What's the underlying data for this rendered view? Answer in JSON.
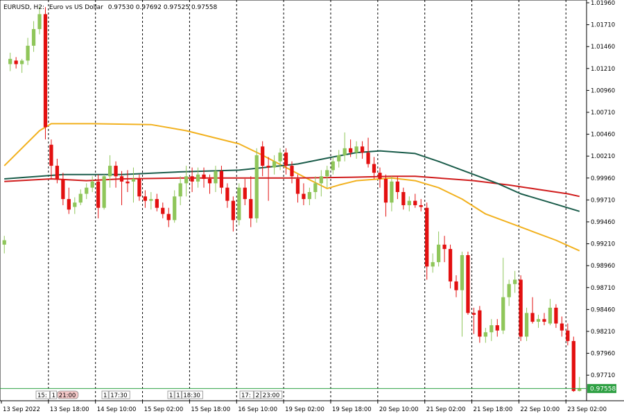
{
  "header": {
    "symbol": "EURUSD, H2:",
    "description": "Euro vs US Dollar",
    "ohlc": "0.97530 0.97692 0.97525 0.97558"
  },
  "current_price_label": "0.97558",
  "colors": {
    "background": "#ffffff",
    "bull": "#8fc65a",
    "bear": "#e31010",
    "ma_fast": "#f2b11e",
    "ma_mid": "#d01c1c",
    "ma_slow": "#1a5c4a",
    "current_price": "#2ea043"
  },
  "chart_data": {
    "type": "candlestick",
    "y_axis": {
      "ticks": [
        "1.01960",
        "1.01710",
        "1.01460",
        "1.01210",
        "1.00960",
        "1.00710",
        "1.00460",
        "1.00210",
        "0.99960",
        "0.99710",
        "0.99460",
        "0.99210",
        "0.98960",
        "0.98710",
        "0.98460",
        "0.98210",
        "0.97960",
        "0.97710"
      ],
      "ylim": [
        0.9745,
        1.0196
      ]
    },
    "x_axis": {
      "ticks": [
        "13 Sep 2022",
        "13 Sep 18:00",
        "14 Sep 10:00",
        "15 Sep 02:00",
        "15 Sep 18:00",
        "16 Sep 10:00",
        "19 Sep 02:00",
        "19 Sep 18:00",
        "20 Sep 10:00",
        "21 Sep 02:00",
        "21 Sep 18:00",
        "22 Sep 10:00",
        "23 Sep 02:00"
      ]
    },
    "period_separators": true,
    "event_markers": [
      {
        "labels": [
          "15:",
          "1",
          "21:00"
        ],
        "highlight_last": true
      },
      {
        "labels": [
          "1",
          "17:30"
        ],
        "highlight_last": false
      },
      {
        "labels": [
          "1",
          "1",
          "18:30"
        ],
        "highlight_last": false
      },
      {
        "labels": [
          "17:",
          "2",
          "23:00"
        ],
        "highlight_last": false
      }
    ],
    "candles": [
      {
        "o": 0.992,
        "h": 0.993,
        "l": 0.991,
        "c": 0.9925
      },
      {
        "o": 1.0126,
        "h": 1.0139,
        "l": 1.0118,
        "c": 1.0132
      },
      {
        "o": 1.013,
        "h": 1.0134,
        "l": 1.0121,
        "c": 1.0126
      },
      {
        "o": 1.0126,
        "h": 1.0132,
        "l": 1.0116,
        "c": 1.013
      },
      {
        "o": 1.013,
        "h": 1.0156,
        "l": 1.0125,
        "c": 1.0147
      },
      {
        "o": 1.0147,
        "h": 1.0175,
        "l": 1.014,
        "c": 1.0166
      },
      {
        "o": 1.0166,
        "h": 1.0192,
        "l": 1.016,
        "c": 1.0183
      },
      {
        "o": 1.0183,
        "h": 1.0191,
        "l": 1.004,
        "c": 1.0054
      },
      {
        "o": 1.0034,
        "h": 1.004,
        "l": 0.9995,
        "c": 1.001
      },
      {
        "o": 1.001,
        "h": 1.0018,
        "l": 0.999,
        "c": 0.9995
      },
      {
        "o": 0.9995,
        "h": 1.0002,
        "l": 0.9965,
        "c": 0.9972
      },
      {
        "o": 0.9972,
        "h": 0.9985,
        "l": 0.9955,
        "c": 0.996
      },
      {
        "o": 0.9963,
        "h": 0.9974,
        "l": 0.9955,
        "c": 0.9968
      },
      {
        "o": 0.9968,
        "h": 0.9983,
        "l": 0.9965,
        "c": 0.9978
      },
      {
        "o": 0.9978,
        "h": 0.999,
        "l": 0.9972,
        "c": 0.9985
      },
      {
        "o": 0.9985,
        "h": 0.9998,
        "l": 0.998,
        "c": 0.9992
      },
      {
        "o": 0.9992,
        "h": 1.0,
        "l": 0.995,
        "c": 0.9962
      },
      {
        "o": 0.9962,
        "h": 1.0,
        "l": 0.996,
        "c": 0.9998
      },
      {
        "o": 0.9998,
        "h": 1.0022,
        "l": 0.9985,
        "c": 1.001
      },
      {
        "o": 1.001,
        "h": 1.0015,
        "l": 0.9985,
        "c": 0.9998
      },
      {
        "o": 0.9998,
        "h": 1.0004,
        "l": 0.9965,
        "c": 0.9992
      },
      {
        "o": 0.9992,
        "h": 1.0005,
        "l": 0.998,
        "c": 0.999
      },
      {
        "o": 0.9992,
        "h": 1.0008,
        "l": 0.9968,
        "c": 0.9995
      },
      {
        "o": 0.9995,
        "h": 1.0,
        "l": 0.997,
        "c": 0.9975
      },
      {
        "o": 0.9975,
        "h": 0.9982,
        "l": 0.9962,
        "c": 0.997
      },
      {
        "o": 0.997,
        "h": 0.998,
        "l": 0.996,
        "c": 0.9972
      },
      {
        "o": 0.9972,
        "h": 0.9978,
        "l": 0.9958,
        "c": 0.9962
      },
      {
        "o": 0.9962,
        "h": 0.9968,
        "l": 0.995,
        "c": 0.9955
      },
      {
        "o": 0.9955,
        "h": 0.9962,
        "l": 0.994,
        "c": 0.9948
      },
      {
        "o": 0.9948,
        "h": 0.9982,
        "l": 0.9945,
        "c": 0.9975
      },
      {
        "o": 0.9975,
        "h": 0.9998,
        "l": 0.9965,
        "c": 0.999
      },
      {
        "o": 0.999,
        "h": 1.001,
        "l": 0.9975,
        "c": 0.9998
      },
      {
        "o": 0.9998,
        "h": 1.0008,
        "l": 0.998,
        "c": 0.9992
      },
      {
        "o": 0.9992,
        "h": 1.0008,
        "l": 0.9985,
        "c": 1.0
      },
      {
        "o": 1.0,
        "h": 1.0008,
        "l": 0.9985,
        "c": 0.9995
      },
      {
        "o": 0.9995,
        "h": 1.0,
        "l": 0.9978,
        "c": 0.999
      },
      {
        "o": 0.999,
        "h": 1.001,
        "l": 0.998,
        "c": 1.0004
      },
      {
        "o": 1.0004,
        "h": 1.001,
        "l": 0.9978,
        "c": 0.9985
      },
      {
        "o": 0.9985,
        "h": 0.999,
        "l": 0.9962,
        "c": 0.997
      },
      {
        "o": 0.997,
        "h": 0.9975,
        "l": 0.9935,
        "c": 0.9948
      },
      {
        "o": 0.9948,
        "h": 0.999,
        "l": 0.9942,
        "c": 0.9985
      },
      {
        "o": 0.9985,
        "h": 0.9995,
        "l": 0.9965,
        "c": 0.9972
      },
      {
        "o": 0.9972,
        "h": 0.9998,
        "l": 0.994,
        "c": 0.995
      },
      {
        "o": 0.995,
        "h": 1.003,
        "l": 0.9945,
        "c": 1.0022
      },
      {
        "o": 1.0032,
        "h": 1.0038,
        "l": 0.9998,
        "c": 1.001
      },
      {
        "o": 1.001,
        "h": 1.002,
        "l": 0.997,
        "c": 1.0008
      },
      {
        "o": 1.0008,
        "h": 1.0022,
        "l": 1.0,
        "c": 1.0015
      },
      {
        "o": 1.0015,
        "h": 1.003,
        "l": 1.0005,
        "c": 1.0025
      },
      {
        "o": 1.0025,
        "h": 1.003,
        "l": 1.0,
        "c": 1.001
      },
      {
        "o": 1.001,
        "h": 1.0015,
        "l": 0.999,
        "c": 0.9998
      },
      {
        "o": 0.9995,
        "h": 1.0,
        "l": 0.9968,
        "c": 0.9978
      },
      {
        "o": 0.9978,
        "h": 0.999,
        "l": 0.9965,
        "c": 0.9972
      },
      {
        "o": 0.9972,
        "h": 0.9985,
        "l": 0.9965,
        "c": 0.998
      },
      {
        "o": 0.998,
        "h": 0.9998,
        "l": 0.9972,
        "c": 0.999
      },
      {
        "o": 0.999,
        "h": 1.0005,
        "l": 0.9975,
        "c": 0.9998
      },
      {
        "o": 0.9998,
        "h": 1.001,
        "l": 0.9985,
        "c": 1.0005
      },
      {
        "o": 1.0005,
        "h": 1.002,
        "l": 1.0,
        "c": 1.0015
      },
      {
        "o": 1.0015,
        "h": 1.0028,
        "l": 1.0008,
        "c": 1.0022
      },
      {
        "o": 1.0022,
        "h": 1.0048,
        "l": 1.0015,
        "c": 1.003
      },
      {
        "o": 1.003,
        "h": 1.004,
        "l": 1.002,
        "c": 1.0025
      },
      {
        "o": 1.0025,
        "h": 1.0038,
        "l": 1.0018,
        "c": 1.0032
      },
      {
        "o": 1.0032,
        "h": 1.0038,
        "l": 1.0018,
        "c": 1.0025
      },
      {
        "o": 1.0025,
        "h": 1.0042,
        "l": 1.0008,
        "c": 1.0012
      },
      {
        "o": 1.0012,
        "h": 1.002,
        "l": 0.9995,
        "c": 1.0002
      },
      {
        "o": 1.0002,
        "h": 1.0008,
        "l": 0.9985,
        "c": 0.9995
      },
      {
        "o": 0.9995,
        "h": 1.0,
        "l": 0.9952,
        "c": 0.9968
      },
      {
        "o": 0.9968,
        "h": 0.9998,
        "l": 0.9958,
        "c": 0.9992
      },
      {
        "o": 0.9992,
        "h": 0.9998,
        "l": 0.9972,
        "c": 0.998
      },
      {
        "o": 0.998,
        "h": 0.9985,
        "l": 0.996,
        "c": 0.9965
      },
      {
        "o": 0.9965,
        "h": 0.9975,
        "l": 0.9958,
        "c": 0.997
      },
      {
        "o": 0.997,
        "h": 0.9978,
        "l": 0.9962,
        "c": 0.9965
      },
      {
        "o": 0.9965,
        "h": 0.9972,
        "l": 0.9958,
        "c": 0.9963
      },
      {
        "o": 0.9962,
        "h": 0.9968,
        "l": 0.988,
        "c": 0.9895
      },
      {
        "o": 0.9895,
        "h": 0.991,
        "l": 0.9888,
        "c": 0.99
      },
      {
        "o": 0.99,
        "h": 0.9935,
        "l": 0.9895,
        "c": 0.992
      },
      {
        "o": 0.992,
        "h": 0.993,
        "l": 0.99,
        "c": 0.9915
      },
      {
        "o": 0.9915,
        "h": 0.992,
        "l": 0.987,
        "c": 0.9878
      },
      {
        "o": 0.9878,
        "h": 0.9885,
        "l": 0.986,
        "c": 0.9868
      },
      {
        "o": 0.9868,
        "h": 0.9912,
        "l": 0.9815,
        "c": 0.9908
      },
      {
        "o": 0.9908,
        "h": 0.9912,
        "l": 0.984,
        "c": 0.9842
      },
      {
        "o": 0.9842,
        "h": 0.9848,
        "l": 0.9818,
        "c": 0.984
      },
      {
        "o": 0.9845,
        "h": 0.985,
        "l": 0.9808,
        "c": 0.9815
      },
      {
        "o": 0.9815,
        "h": 0.9825,
        "l": 0.9808,
        "c": 0.982
      },
      {
        "o": 0.982,
        "h": 0.9835,
        "l": 0.981,
        "c": 0.9828
      },
      {
        "o": 0.9828,
        "h": 0.9835,
        "l": 0.9815,
        "c": 0.9822
      },
      {
        "o": 0.9822,
        "h": 0.9905,
        "l": 0.9818,
        "c": 0.986
      },
      {
        "o": 0.986,
        "h": 0.988,
        "l": 0.985,
        "c": 0.9875
      },
      {
        "o": 0.9875,
        "h": 0.989,
        "l": 0.9865,
        "c": 0.988
      },
      {
        "o": 0.988,
        "h": 0.9885,
        "l": 0.981,
        "c": 0.9815
      },
      {
        "o": 0.9815,
        "h": 0.9848,
        "l": 0.981,
        "c": 0.9842
      },
      {
        "o": 0.9842,
        "h": 0.986,
        "l": 0.983,
        "c": 0.9832
      },
      {
        "o": 0.9832,
        "h": 0.984,
        "l": 0.9825,
        "c": 0.9835
      },
      {
        "o": 0.9835,
        "h": 0.9842,
        "l": 0.9828,
        "c": 0.9832
      },
      {
        "o": 0.983,
        "h": 0.9858,
        "l": 0.9828,
        "c": 0.9848
      },
      {
        "o": 0.9848,
        "h": 0.9852,
        "l": 0.9825,
        "c": 0.983
      },
      {
        "o": 0.983,
        "h": 0.9838,
        "l": 0.9815,
        "c": 0.9822
      },
      {
        "o": 0.9822,
        "h": 0.983,
        "l": 0.9805,
        "c": 0.981
      },
      {
        "o": 0.981,
        "h": 0.9815,
        "l": 0.9752,
        "c": 0.9753
      },
      {
        "o": 0.9753,
        "h": 0.9769,
        "l": 0.97525,
        "c": 0.97558
      }
    ],
    "moving_averages": [
      {
        "color_key": "ma_fast",
        "values": [
          [
            0,
            1.001
          ],
          [
            6,
            1.005
          ],
          [
            8,
            1.0058
          ],
          [
            15,
            1.0058
          ],
          [
            25,
            1.0057
          ],
          [
            31,
            1.005
          ],
          [
            40,
            1.0035
          ],
          [
            44,
            1.0022
          ],
          [
            48,
            1.0008
          ],
          [
            52,
            0.9994
          ],
          [
            55,
            0.9984
          ],
          [
            57,
            0.9988
          ],
          [
            60,
            0.9993
          ],
          [
            66,
            0.9996
          ],
          [
            70,
            0.9993
          ],
          [
            74,
            0.9985
          ],
          [
            78,
            0.9972
          ],
          [
            82,
            0.9955
          ],
          [
            86,
            0.9945
          ],
          [
            90,
            0.9935
          ],
          [
            94,
            0.9925
          ],
          [
            98,
            0.9913
          ]
        ]
      },
      {
        "color_key": "ma_mid",
        "values": [
          [
            0,
            0.9992
          ],
          [
            8,
            0.9995
          ],
          [
            14,
            0.9993
          ],
          [
            20,
            0.9995
          ],
          [
            30,
            0.9996
          ],
          [
            40,
            0.9996
          ],
          [
            50,
            0.9996
          ],
          [
            60,
            0.9997
          ],
          [
            66,
            0.9998
          ],
          [
            70,
            0.9998
          ],
          [
            74,
            0.9996
          ],
          [
            80,
            0.9993
          ],
          [
            86,
            0.9988
          ],
          [
            92,
            0.9982
          ],
          [
            96,
            0.9978
          ],
          [
            98,
            0.9975
          ]
        ]
      },
      {
        "color_key": "ma_slow",
        "values": [
          [
            0,
            0.9995
          ],
          [
            6,
            0.9998
          ],
          [
            10,
            1.0
          ],
          [
            20,
            1.0
          ],
          [
            30,
            1.0003
          ],
          [
            40,
            1.0005
          ],
          [
            50,
            1.0012
          ],
          [
            56,
            1.002
          ],
          [
            60,
            1.0025
          ],
          [
            64,
            1.0027
          ],
          [
            70,
            1.0024
          ],
          [
            74,
            1.0015
          ],
          [
            78,
            1.0005
          ],
          [
            84,
            0.999
          ],
          [
            88,
            0.9978
          ],
          [
            92,
            0.997
          ],
          [
            96,
            0.9962
          ],
          [
            98,
            0.9958
          ]
        ]
      }
    ]
  }
}
